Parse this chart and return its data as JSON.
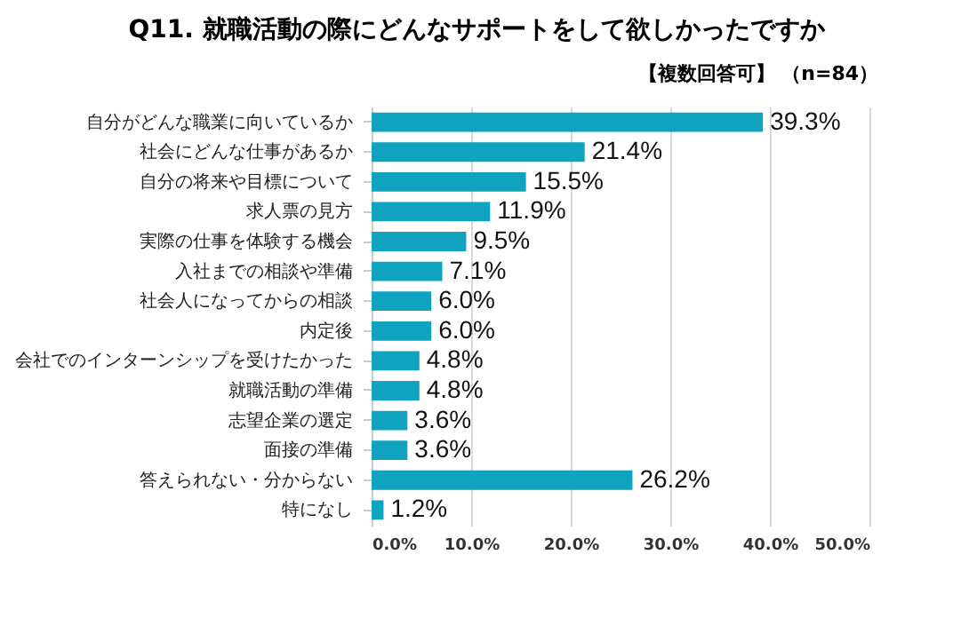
{
  "chart_data": {
    "type": "bar",
    "orientation": "horizontal",
    "title": "Q11.  就職活動の際にどんなサポートをして欲しかったですか",
    "subtitle": "【複数回答可】 （n=84）",
    "categories": [
      "自分がどんな職業に向いているか",
      "社会にどんな仕事があるか",
      "自分の将来や目標について",
      "求人票の見方",
      "実際の仕事を体験する機会",
      "入社までの相談や準備",
      "社会人になってからの相談",
      "内定後",
      "会社でのインターンシップを受けたかった",
      "就職活動の準備",
      "志望企業の選定",
      "面接の準備",
      "答えられない・分からない",
      "特になし"
    ],
    "values": [
      39.3,
      21.4,
      15.5,
      11.9,
      9.5,
      7.1,
      6.0,
      6.0,
      4.8,
      4.8,
      3.6,
      3.6,
      26.2,
      1.2
    ],
    "value_labels": [
      "39.3%",
      "21.4%",
      "15.5%",
      "11.9%",
      "9.5%",
      "7.1%",
      "6.0%",
      "6.0%",
      "4.8%",
      "4.8%",
      "3.6%",
      "3.6%",
      "26.2%",
      "1.2%"
    ],
    "color": "#0fa3c0",
    "xlim": [
      0,
      50
    ],
    "xticks": [
      {
        "value": 0,
        "label": "0.0%"
      },
      {
        "value": 10,
        "label": "10.0%"
      },
      {
        "value": 20,
        "label": "20.0%"
      },
      {
        "value": 30,
        "label": "30.0%"
      },
      {
        "value": 40,
        "label": "40.0%"
      },
      {
        "value": 50,
        "label": "50.0%"
      }
    ],
    "grid": "x"
  }
}
